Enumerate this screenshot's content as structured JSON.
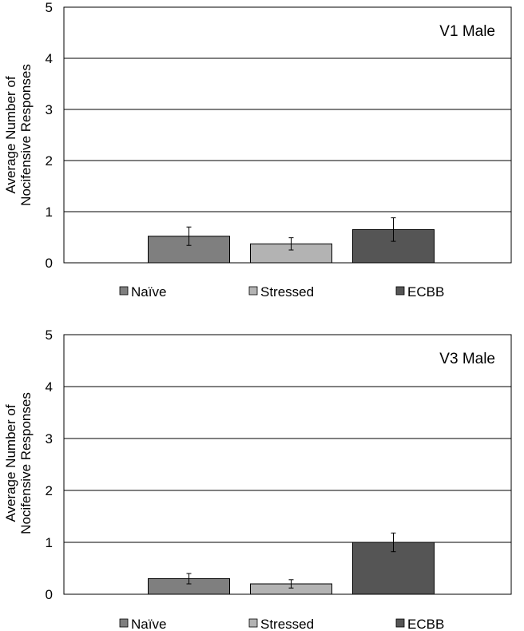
{
  "colors": {
    "naive": "#7f7f7f",
    "stressed": "#b3b3b3",
    "ecbb": "#555555",
    "grid": "#000000"
  },
  "chart_data": [
    {
      "type": "bar",
      "title": "V1 Male",
      "ylabel_line1": "Average Number of",
      "ylabel_line2": "Nocifensive Responses",
      "ylim": [
        0,
        5
      ],
      "yticks": [
        "0",
        "1",
        "2",
        "3",
        "4",
        "5"
      ],
      "grid": true,
      "legend_position": "bottom",
      "series": [
        {
          "name": "Naïve",
          "value": 0.52,
          "error": 0.18
        },
        {
          "name": "Stressed",
          "value": 0.37,
          "error": 0.12
        },
        {
          "name": "ECBB",
          "value": 0.65,
          "error": 0.23
        }
      ]
    },
    {
      "type": "bar",
      "title": "V3 Male",
      "ylabel_line1": "Average Number of",
      "ylabel_line2": "Nocifensive Responses",
      "ylim": [
        0,
        5
      ],
      "yticks": [
        "0",
        "1",
        "2",
        "3",
        "4",
        "5"
      ],
      "grid": true,
      "legend_position": "bottom",
      "series": [
        {
          "name": "Naïve",
          "value": 0.3,
          "error": 0.1
        },
        {
          "name": "Stressed",
          "value": 0.2,
          "error": 0.08
        },
        {
          "name": "ECBB",
          "value": 1.0,
          "error": 0.18
        }
      ]
    }
  ]
}
